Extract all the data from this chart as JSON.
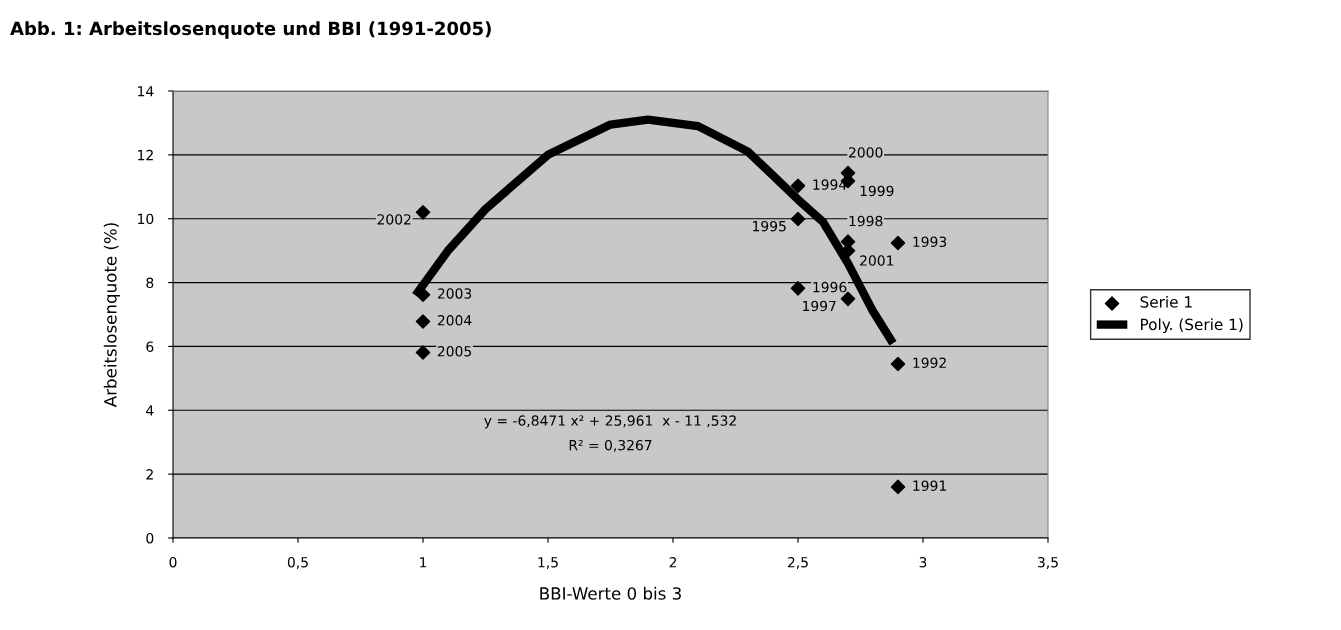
{
  "chart_data": {
    "type": "scatter",
    "title": "Abb. 1: Arbeitslosenquote und BBI (1991-2005)",
    "xlabel": "BBI-Werte 0 bis 3",
    "ylabel": "Arbeitslosenquote (%)",
    "xlim": [
      0,
      3.5
    ],
    "xticks": [
      0,
      {
        "value": 0.5,
        "label": "0,5"
      },
      1,
      {
        "value": 1.5,
        "label": "1,5"
      },
      2,
      {
        "value": 2.5,
        "label": "2,5"
      },
      3,
      {
        "value": 3.5,
        "label": "3,5"
      }
    ],
    "ylim": [
      0,
      14
    ],
    "yticks": [
      0,
      2,
      4,
      6,
      8,
      10,
      12,
      14
    ],
    "grid": "y",
    "legend": "right",
    "annotations": [
      "y = -6,8471 x² + 25,961  x - 11 ,532",
      "R² = 0,3267",
      {
        "text": "1991",
        "x": 2.9,
        "y": 1.6
      },
      {
        "text": "1992",
        "x": 2.9,
        "y": 5.45
      },
      {
        "text": "1993",
        "x": 2.9,
        "y": 9.24
      },
      {
        "text": "1994",
        "x": 2.5,
        "y": 11.03
      },
      {
        "text": "1995",
        "x": 2.5,
        "y": 9.99
      },
      {
        "text": "1996",
        "x": 2.5,
        "y": 7.82
      },
      {
        "text": "1997",
        "x": 2.7,
        "y": 7.49
      },
      {
        "text": "1998",
        "x": 2.7,
        "y": 9.28
      },
      {
        "text": "1999",
        "x": 2.7,
        "y": 11.18
      },
      {
        "text": "2000",
        "x": 2.7,
        "y": 11.43
      },
      {
        "text": "2001",
        "x": 2.7,
        "y": 9.0
      },
      {
        "text": "2002",
        "x": 1,
        "y": 10.2
      },
      {
        "text": "2003",
        "x": 1,
        "y": 7.62
      },
      {
        "text": "2004",
        "x": 1,
        "y": 6.78
      },
      {
        "text": "2005",
        "x": 1,
        "y": 5.81
      }
    ],
    "series": [
      {
        "name": "Serie 1",
        "marker": "diamond",
        "color": "#000000",
        "x": [
          2.9,
          2.9,
          2.9,
          2.5,
          2.5,
          2.5,
          2.7,
          2.7,
          2.7,
          2.7,
          2.7,
          1,
          1,
          1,
          1
        ],
        "values": [
          1.6,
          5.45,
          9.24,
          11.03,
          9.99,
          7.82,
          7.49,
          9.28,
          11.18,
          11.43,
          9.0,
          10.2,
          7.62,
          6.78,
          5.81
        ]
      },
      {
        "name": "Poly. (Serie 1)",
        "type": "line",
        "color": "#000000",
        "x": [
          0.97,
          1.1,
          1.25,
          1.5,
          1.75,
          1.9,
          2.1,
          2.3,
          2.5,
          2.6,
          2.7,
          2.8,
          2.88
        ],
        "values": [
          7.6,
          9.0,
          10.3,
          12.0,
          12.95,
          13.1,
          12.9,
          12.1,
          10.6,
          9.9,
          8.6,
          7.1,
          6.1
        ]
      }
    ]
  }
}
